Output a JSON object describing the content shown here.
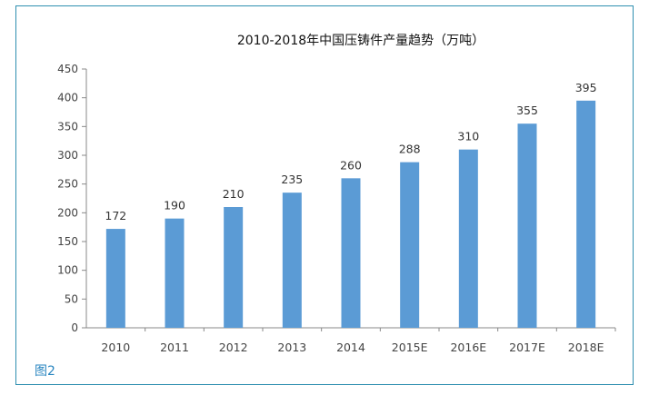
{
  "figure_caption": "图2",
  "chart_data": {
    "type": "bar",
    "title": "2010-2018年中国压铸件产量趋势（万吨）",
    "xlabel": "",
    "ylabel": "",
    "categories": [
      "2010",
      "2011",
      "2012",
      "2013",
      "2014",
      "2015E",
      "2016E",
      "2017E",
      "2018E"
    ],
    "values": [
      172,
      190,
      210,
      235,
      260,
      288,
      310,
      355,
      395
    ],
    "data_labels": [
      "172",
      "190",
      "210",
      "235",
      "260",
      "288",
      "310",
      "355",
      "395"
    ],
    "ylim": [
      0,
      450
    ],
    "yticks": [
      0,
      50,
      100,
      150,
      200,
      250,
      300,
      350,
      400,
      450
    ],
    "ytick_labels": [
      "0",
      "50",
      "100",
      "150",
      "200",
      "250",
      "300",
      "350",
      "400",
      "450"
    ],
    "bar_color": "#5b9bd5",
    "grid": false,
    "legend": "none"
  }
}
